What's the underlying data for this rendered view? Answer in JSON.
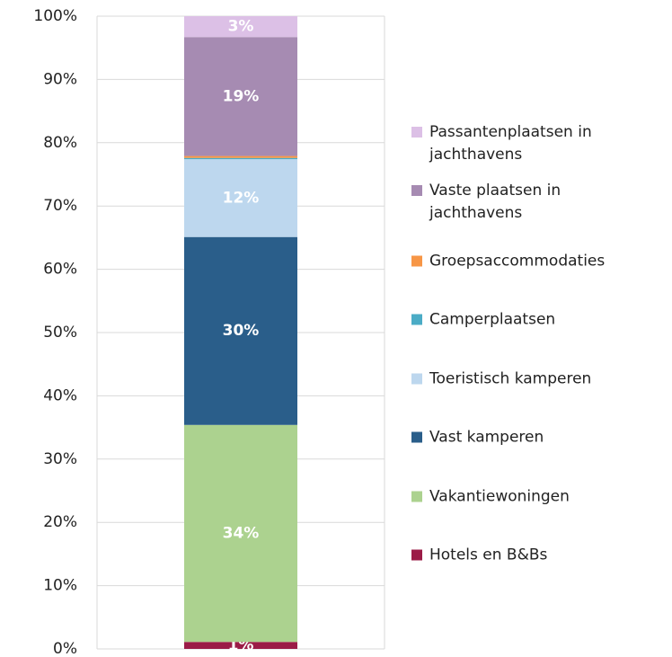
{
  "chart_data": {
    "type": "stacked_bar",
    "categories": [
      null
    ],
    "series": [
      {
        "name": "Hotels en B&Bs",
        "color": "#9b1c47",
        "values": [
          1.1
        ],
        "value_labels": [
          "1%"
        ]
      },
      {
        "name": "Vakantiewoningen",
        "color": "#acd28f",
        "values": [
          34.3
        ],
        "value_labels": [
          "34%"
        ]
      },
      {
        "name": "Vast kamperen",
        "color": "#2a5e8a",
        "values": [
          29.7
        ],
        "value_labels": [
          "30%"
        ]
      },
      {
        "name": "Toeristisch kamperen",
        "color": "#bdd7ee",
        "values": [
          12.3
        ],
        "value_labels": [
          "12%"
        ]
      },
      {
        "name": "Camperplaatsen",
        "color": "#4bacc6",
        "values": [
          0.2
        ]
      },
      {
        "name": "Groepsaccommodaties",
        "color": "#f79646",
        "values": [
          0.3
        ]
      },
      {
        "name": "Vaste plaatsen in jachthavens",
        "color": "#a68bb2",
        "values": [
          18.8
        ],
        "value_labels": [
          "19%"
        ]
      },
      {
        "name": "Passantenplaatsen in jachthavens",
        "color": "#dcc0e6",
        "values": [
          3.3
        ],
        "value_labels": [
          "3%"
        ]
      }
    ],
    "ylim": [
      0,
      100
    ],
    "yticks": [
      {
        "value": 0,
        "label": "0%"
      },
      {
        "value": 10,
        "label": "10%"
      },
      {
        "value": 20,
        "label": "20%"
      },
      {
        "value": 30,
        "label": "30%"
      },
      {
        "value": 40,
        "label": "40%"
      },
      {
        "value": 50,
        "label": "50%"
      },
      {
        "value": 60,
        "label": "60%"
      },
      {
        "value": 70,
        "label": "70%"
      },
      {
        "value": 80,
        "label": "80%"
      },
      {
        "value": 90,
        "label": "90%"
      },
      {
        "value": 100,
        "label": "100%"
      }
    ],
    "grid": true,
    "legend": "right"
  }
}
